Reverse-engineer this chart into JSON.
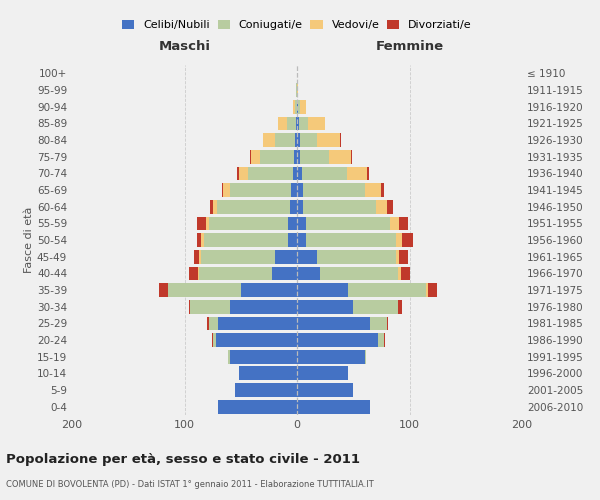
{
  "age_groups": [
    "0-4",
    "5-9",
    "10-14",
    "15-19",
    "20-24",
    "25-29",
    "30-34",
    "35-39",
    "40-44",
    "45-49",
    "50-54",
    "55-59",
    "60-64",
    "65-69",
    "70-74",
    "75-79",
    "80-84",
    "85-89",
    "90-94",
    "95-99",
    "100+"
  ],
  "birth_years": [
    "2006-2010",
    "2001-2005",
    "1996-2000",
    "1991-1995",
    "1986-1990",
    "1981-1985",
    "1976-1980",
    "1971-1975",
    "1966-1970",
    "1961-1965",
    "1956-1960",
    "1951-1955",
    "1946-1950",
    "1941-1945",
    "1936-1940",
    "1931-1935",
    "1926-1930",
    "1921-1925",
    "1916-1920",
    "1911-1915",
    "≤ 1910"
  ],
  "male_celibe": [
    70,
    55,
    52,
    60,
    72,
    70,
    60,
    50,
    22,
    20,
    8,
    8,
    6,
    5,
    4,
    3,
    2,
    1,
    0,
    0,
    0
  ],
  "male_coniugato": [
    0,
    0,
    0,
    1,
    3,
    8,
    35,
    65,
    65,
    65,
    75,
    70,
    65,
    55,
    40,
    30,
    18,
    8,
    2,
    1,
    0
  ],
  "male_vedovo": [
    0,
    0,
    0,
    0,
    0,
    0,
    0,
    0,
    1,
    2,
    2,
    3,
    4,
    6,
    8,
    8,
    10,
    8,
    2,
    0,
    0
  ],
  "male_divorziato": [
    0,
    0,
    0,
    0,
    1,
    2,
    1,
    8,
    8,
    5,
    4,
    8,
    2,
    1,
    1,
    1,
    0,
    0,
    0,
    0,
    0
  ],
  "female_celibe": [
    65,
    50,
    45,
    60,
    72,
    65,
    50,
    45,
    20,
    18,
    8,
    8,
    5,
    5,
    4,
    3,
    3,
    2,
    1,
    0,
    0
  ],
  "female_coniugata": [
    0,
    0,
    0,
    1,
    5,
    15,
    40,
    70,
    70,
    70,
    80,
    75,
    65,
    55,
    40,
    25,
    15,
    8,
    2,
    0,
    0
  ],
  "female_vedova": [
    0,
    0,
    0,
    0,
    0,
    0,
    0,
    1,
    2,
    3,
    5,
    8,
    10,
    15,
    18,
    20,
    20,
    15,
    5,
    1,
    0
  ],
  "female_divorziata": [
    0,
    0,
    0,
    0,
    1,
    1,
    3,
    8,
    8,
    8,
    10,
    8,
    5,
    2,
    2,
    1,
    1,
    0,
    0,
    0,
    0
  ],
  "colors": {
    "celibe": "#4472c4",
    "coniugato": "#b8cca0",
    "vedovo": "#f5c97a",
    "divorziato": "#c0392b"
  },
  "title": "Popolazione per età, sesso e stato civile - 2011",
  "subtitle": "COMUNE DI BOVOLENTA (PD) - Dati ISTAT 1° gennaio 2011 - Elaborazione TUTTITALIA.IT",
  "label_maschi": "Maschi",
  "label_femmine": "Femmine",
  "ylabel_left": "Fasce di età",
  "xlim": 200,
  "bg_color": "#f0f0f0",
  "legend_labels": [
    "Celibi/Nubili",
    "Coniugati/e",
    "Vedovi/e",
    "Divorziati/e"
  ]
}
